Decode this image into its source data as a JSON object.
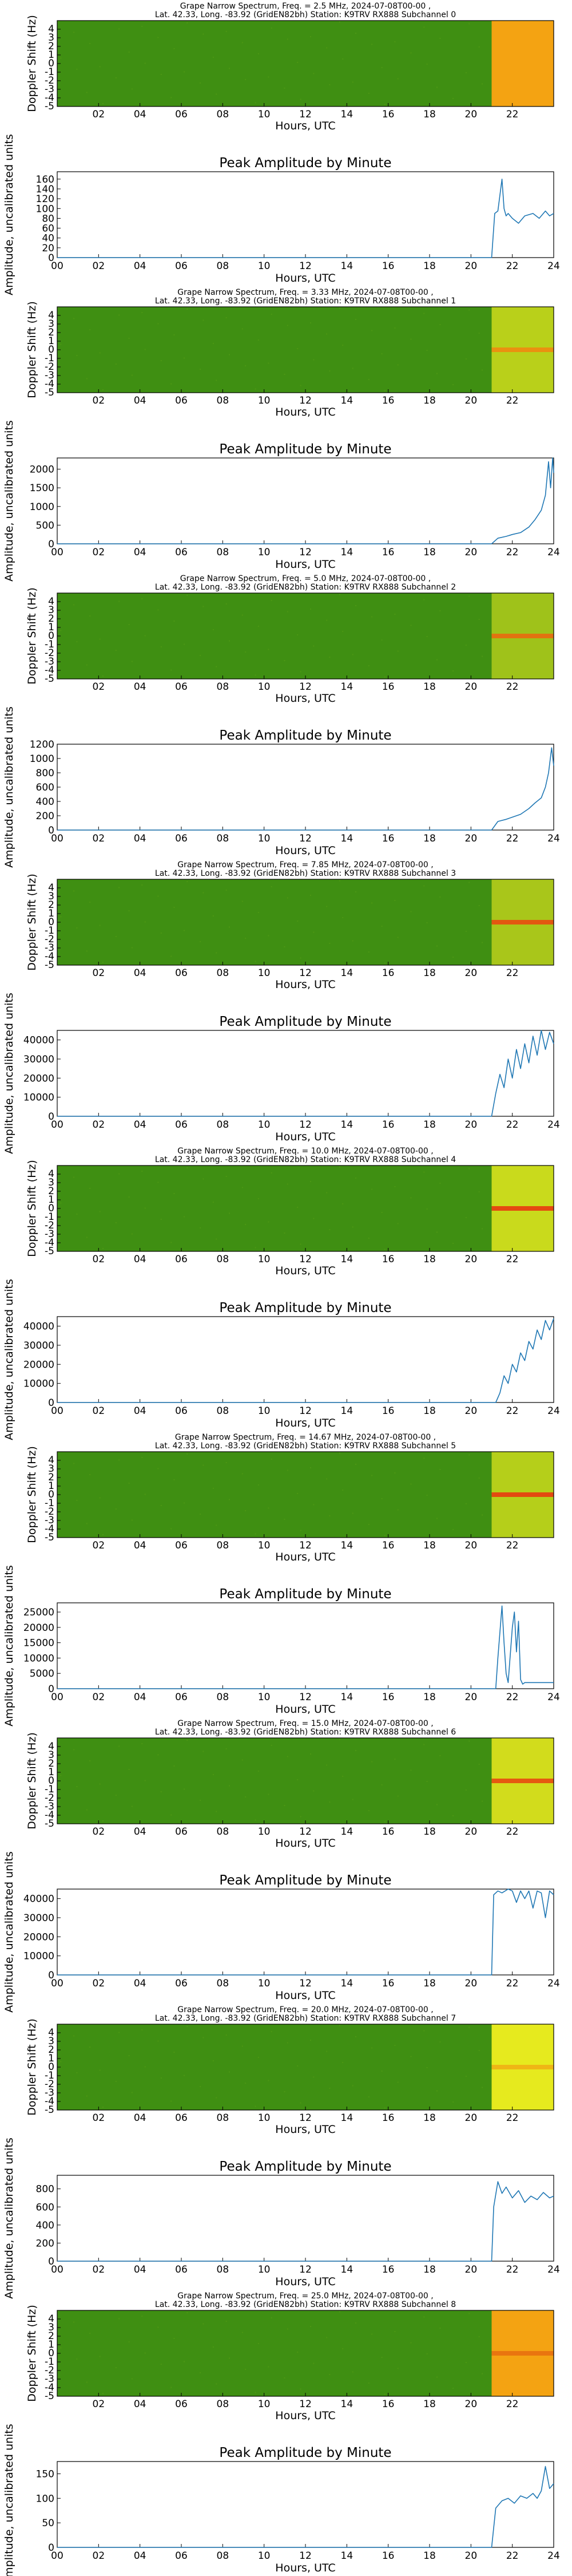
{
  "figure": {
    "type": "grape-narrow-spectrum-panel-stack"
  },
  "chart_data": [
    {
      "subchannel": 0,
      "spectrum": {
        "type": "heatmap",
        "title_line1": "Grape Narrow Spectrum, Freq. = 2.5 MHz, 2024-07-08T00-00 ,",
        "title_line2": "Lat.  42.33, Long. -83.92 (GridEN82bh) Station: K9TRV RX888 Subchannel 0",
        "xlabel": "Hours, UTC",
        "ylabel": "Doppler Shift (Hz)",
        "x_ticks": [
          "02",
          "04",
          "06",
          "08",
          "10",
          "12",
          "14",
          "16",
          "18",
          "20",
          "22"
        ],
        "y_ticks": [
          "-5",
          "-4",
          "-3",
          "-2",
          "-1",
          "0",
          "1",
          "2",
          "3",
          "4"
        ],
        "xlim": [
          0,
          24
        ],
        "ylim": [
          -5,
          5
        ],
        "data_start_hour": 21.0,
        "background_color": "#3f8f12",
        "active_color": "#f4a312",
        "trace_color": null
      },
      "amplitude": {
        "type": "line",
        "title": "Peak Amplitude by Minute",
        "xlabel": "Hours, UTC",
        "ylabel": "Amplitude, uncalibrated units",
        "x_ticks": [
          "00",
          "02",
          "04",
          "06",
          "08",
          "10",
          "12",
          "14",
          "16",
          "18",
          "20",
          "22",
          "24"
        ],
        "y_ticks": [
          "0",
          "20",
          "40",
          "60",
          "80",
          "100",
          "120",
          "140",
          "160"
        ],
        "xlim": [
          0,
          24
        ],
        "ylim": [
          0,
          175
        ],
        "x": [
          0,
          21.0,
          21.15,
          21.3,
          21.5,
          21.6,
          21.7,
          21.8,
          22.0,
          22.3,
          22.6,
          23.0,
          23.3,
          23.6,
          23.8,
          24.0
        ],
        "y": [
          0,
          0,
          90,
          95,
          160,
          100,
          85,
          90,
          80,
          70,
          85,
          90,
          80,
          95,
          85,
          90
        ]
      }
    },
    {
      "subchannel": 1,
      "spectrum": {
        "type": "heatmap",
        "title_line1": "Grape Narrow Spectrum, Freq. = 3.33 MHz, 2024-07-08T00-00 ,",
        "title_line2": "Lat.  42.33, Long. -83.92 (GridEN82bh) Station: K9TRV RX888 Subchannel 1",
        "xlabel": "Hours, UTC",
        "ylabel": "Doppler Shift (Hz)",
        "x_ticks": [
          "02",
          "04",
          "06",
          "08",
          "10",
          "12",
          "14",
          "16",
          "18",
          "20",
          "22"
        ],
        "y_ticks": [
          "-5",
          "-4",
          "-3",
          "-2",
          "-1",
          "0",
          "1",
          "2",
          "3",
          "4"
        ],
        "xlim": [
          0,
          24
        ],
        "ylim": [
          -5,
          5
        ],
        "data_start_hour": 21.0,
        "background_color": "#3f8f12",
        "active_color": "#b9d01a",
        "trace_color": "#f08a10"
      },
      "amplitude": {
        "type": "line",
        "title": "Peak Amplitude by Minute",
        "xlabel": "Hours, UTC",
        "ylabel": "Amplitude, uncalibrated units",
        "x_ticks": [
          "00",
          "02",
          "04",
          "06",
          "08",
          "10",
          "12",
          "14",
          "16",
          "18",
          "20",
          "22",
          "24"
        ],
        "y_ticks": [
          "0",
          "500",
          "1000",
          "1500",
          "2000"
        ],
        "xlim": [
          0,
          24
        ],
        "ylim": [
          0,
          2300
        ],
        "x": [
          0,
          21.0,
          21.3,
          21.7,
          22.0,
          22.4,
          22.8,
          23.1,
          23.4,
          23.6,
          23.75,
          23.85,
          23.95,
          24.0
        ],
        "y": [
          0,
          0,
          150,
          200,
          250,
          300,
          450,
          650,
          900,
          1300,
          2200,
          1500,
          2300,
          1900
        ]
      }
    },
    {
      "subchannel": 2,
      "spectrum": {
        "type": "heatmap",
        "title_line1": "Grape Narrow Spectrum, Freq. = 5.0 MHz, 2024-07-08T00-00 ,",
        "title_line2": "Lat.  42.33, Long. -83.92 (GridEN82bh) Station: K9TRV RX888 Subchannel 2",
        "xlabel": "Hours, UTC",
        "ylabel": "Doppler Shift (Hz)",
        "x_ticks": [
          "02",
          "04",
          "06",
          "08",
          "10",
          "12",
          "14",
          "16",
          "18",
          "20",
          "22"
        ],
        "y_ticks": [
          "-5",
          "-4",
          "-3",
          "-2",
          "-1",
          "0",
          "1",
          "2",
          "3",
          "4"
        ],
        "xlim": [
          0,
          24
        ],
        "ylim": [
          -5,
          5
        ],
        "data_start_hour": 21.0,
        "background_color": "#3f8f12",
        "active_color": "#9fc21a",
        "trace_color": "#e86a10"
      },
      "amplitude": {
        "type": "line",
        "title": "Peak Amplitude by Minute",
        "xlabel": "Hours, UTC",
        "ylabel": "Amplitude, uncalibrated units",
        "x_ticks": [
          "00",
          "02",
          "04",
          "06",
          "08",
          "10",
          "12",
          "14",
          "16",
          "18",
          "20",
          "22",
          "24"
        ],
        "y_ticks": [
          "0",
          "200",
          "400",
          "600",
          "800",
          "1000",
          "1200"
        ],
        "xlim": [
          0,
          24
        ],
        "ylim": [
          0,
          1200
        ],
        "x": [
          0,
          21.0,
          21.3,
          21.7,
          22.0,
          22.4,
          22.8,
          23.1,
          23.4,
          23.6,
          23.75,
          23.9,
          24.0
        ],
        "y": [
          0,
          0,
          120,
          150,
          180,
          220,
          300,
          380,
          450,
          600,
          800,
          1150,
          900
        ]
      }
    },
    {
      "subchannel": 3,
      "spectrum": {
        "type": "heatmap",
        "title_line1": "Grape Narrow Spectrum, Freq. = 7.85 MHz, 2024-07-08T00-00 ,",
        "title_line2": "Lat.  42.33, Long. -83.92 (GridEN82bh) Station: K9TRV RX888 Subchannel 3",
        "xlabel": "Hours, UTC",
        "ylabel": "Doppler Shift (Hz)",
        "x_ticks": [
          "02",
          "04",
          "06",
          "08",
          "10",
          "12",
          "14",
          "16",
          "18",
          "20",
          "22"
        ],
        "y_ticks": [
          "-5",
          "-4",
          "-3",
          "-2",
          "-1",
          "0",
          "1",
          "2",
          "3",
          "4"
        ],
        "xlim": [
          0,
          24
        ],
        "ylim": [
          -5,
          5
        ],
        "data_start_hour": 21.0,
        "background_color": "#3f8f12",
        "active_color": "#a9c61a",
        "trace_color": "#e84a10"
      },
      "amplitude": {
        "type": "line",
        "title": "Peak Amplitude by Minute",
        "xlabel": "Hours, UTC",
        "ylabel": "Amplitude, uncalibrated units",
        "x_ticks": [
          "00",
          "02",
          "04",
          "06",
          "08",
          "10",
          "12",
          "14",
          "16",
          "18",
          "20",
          "22",
          "24"
        ],
        "y_ticks": [
          "0",
          "10000",
          "20000",
          "30000",
          "40000"
        ],
        "xlim": [
          0,
          24
        ],
        "ylim": [
          0,
          45000
        ],
        "x": [
          0,
          21.0,
          21.2,
          21.4,
          21.6,
          21.8,
          22.0,
          22.2,
          22.4,
          22.6,
          22.8,
          23.0,
          23.2,
          23.4,
          23.6,
          23.8,
          24.0
        ],
        "y": [
          0,
          0,
          12000,
          22000,
          15000,
          30000,
          20000,
          35000,
          25000,
          38000,
          28000,
          42000,
          32000,
          45000,
          35000,
          44000,
          38000
        ]
      }
    },
    {
      "subchannel": 4,
      "spectrum": {
        "type": "heatmap",
        "title_line1": "Grape Narrow Spectrum, Freq. = 10.0 MHz, 2024-07-08T00-00 ,",
        "title_line2": "Lat.  42.33, Long. -83.92 (GridEN82bh) Station: K9TRV RX888 Subchannel 4",
        "xlabel": "Hours, UTC",
        "ylabel": "Doppler Shift (Hz)",
        "x_ticks": [
          "02",
          "04",
          "06",
          "08",
          "10",
          "12",
          "14",
          "16",
          "18",
          "20",
          "22"
        ],
        "y_ticks": [
          "-5",
          "-4",
          "-3",
          "-2",
          "-1",
          "0",
          "1",
          "2",
          "3",
          "4"
        ],
        "xlim": [
          0,
          24
        ],
        "ylim": [
          -5,
          5
        ],
        "data_start_hour": 21.0,
        "background_color": "#3f8f12",
        "active_color": "#c9da1c",
        "trace_color": "#e83a10"
      },
      "amplitude": {
        "type": "line",
        "title": "Peak Amplitude by Minute",
        "xlabel": "Hours, UTC",
        "ylabel": "Amplitude, uncalibrated units",
        "x_ticks": [
          "00",
          "02",
          "04",
          "06",
          "08",
          "10",
          "12",
          "14",
          "16",
          "18",
          "20",
          "22",
          "24"
        ],
        "y_ticks": [
          "0",
          "10000",
          "20000",
          "30000",
          "40000"
        ],
        "xlim": [
          0,
          24
        ],
        "ylim": [
          0,
          45000
        ],
        "x": [
          0,
          21.2,
          21.4,
          21.6,
          21.8,
          22.0,
          22.2,
          22.4,
          22.6,
          22.8,
          23.0,
          23.2,
          23.4,
          23.6,
          23.8,
          24.0
        ],
        "y": [
          0,
          0,
          5000,
          14000,
          10000,
          20000,
          16000,
          26000,
          22000,
          32000,
          28000,
          38000,
          33000,
          43000,
          38000,
          44000
        ]
      }
    },
    {
      "subchannel": 5,
      "spectrum": {
        "type": "heatmap",
        "title_line1": "Grape Narrow Spectrum, Freq. = 14.67 MHz, 2024-07-08T00-00 ,",
        "title_line2": "Lat.  42.33, Long. -83.92 (GridEN82bh) Station: K9TRV RX888 Subchannel 5",
        "xlabel": "Hours, UTC",
        "ylabel": "Doppler Shift (Hz)",
        "x_ticks": [
          "02",
          "04",
          "06",
          "08",
          "10",
          "12",
          "14",
          "16",
          "18",
          "20",
          "22"
        ],
        "y_ticks": [
          "-5",
          "-4",
          "-3",
          "-2",
          "-1",
          "0",
          "1",
          "2",
          "3",
          "4"
        ],
        "xlim": [
          0,
          24
        ],
        "ylim": [
          -5,
          5
        ],
        "data_start_hour": 21.0,
        "background_color": "#3f8f12",
        "active_color": "#b5cf1a",
        "trace_color": "#e83a10"
      },
      "amplitude": {
        "type": "line",
        "title": "Peak Amplitude by Minute",
        "xlabel": "Hours, UTC",
        "ylabel": "Amplitude, uncalibrated units",
        "x_ticks": [
          "00",
          "02",
          "04",
          "06",
          "08",
          "10",
          "12",
          "14",
          "16",
          "18",
          "20",
          "22",
          "24"
        ],
        "y_ticks": [
          "0",
          "5000",
          "10000",
          "15000",
          "20000",
          "25000"
        ],
        "xlim": [
          0,
          24
        ],
        "ylim": [
          0,
          28000
        ],
        "x": [
          0,
          21.2,
          21.3,
          21.5,
          21.6,
          21.7,
          21.8,
          22.0,
          22.1,
          22.2,
          22.3,
          22.4,
          22.5,
          22.6,
          24.0
        ],
        "y": [
          0,
          0,
          10000,
          27000,
          15000,
          5000,
          2000,
          20000,
          25000,
          12000,
          22000,
          3000,
          1500,
          2000,
          2000
        ]
      }
    },
    {
      "subchannel": 6,
      "spectrum": {
        "type": "heatmap",
        "title_line1": "Grape Narrow Spectrum, Freq. = 15.0 MHz, 2024-07-08T00-00 ,",
        "title_line2": "Lat.  42.33, Long. -83.92 (GridEN82bh) Station: K9TRV RX888 Subchannel 6",
        "xlabel": "Hours, UTC",
        "ylabel": "Doppler Shift (Hz)",
        "x_ticks": [
          "02",
          "04",
          "06",
          "08",
          "10",
          "12",
          "14",
          "16",
          "18",
          "20",
          "22"
        ],
        "y_ticks": [
          "-5",
          "-4",
          "-3",
          "-2",
          "-1",
          "0",
          "1",
          "2",
          "3",
          "4"
        ],
        "xlim": [
          0,
          24
        ],
        "ylim": [
          -5,
          5
        ],
        "data_start_hour": 21.0,
        "background_color": "#3f8f12",
        "active_color": "#d2dc1c",
        "trace_color": "#e84a10"
      },
      "amplitude": {
        "type": "line",
        "title": "Peak Amplitude by Minute",
        "xlabel": "Hours, UTC",
        "ylabel": "Amplitude, uncalibrated units",
        "x_ticks": [
          "00",
          "02",
          "04",
          "06",
          "08",
          "10",
          "12",
          "14",
          "16",
          "18",
          "20",
          "22",
          "24"
        ],
        "y_ticks": [
          "0",
          "10000",
          "20000",
          "30000",
          "40000"
        ],
        "xlim": [
          0,
          24
        ],
        "ylim": [
          0,
          45000
        ],
        "x": [
          0,
          21.0,
          21.1,
          21.3,
          21.5,
          21.8,
          22.0,
          22.2,
          22.4,
          22.6,
          22.8,
          23.0,
          23.2,
          23.4,
          23.6,
          23.8,
          24.0
        ],
        "y": [
          0,
          0,
          42000,
          44000,
          43000,
          45000,
          44000,
          38000,
          44000,
          40000,
          44000,
          35000,
          44000,
          43000,
          30000,
          44000,
          42000
        ]
      }
    },
    {
      "subchannel": 7,
      "spectrum": {
        "type": "heatmap",
        "title_line1": "Grape Narrow Spectrum, Freq. = 20.0 MHz, 2024-07-08T00-00 ,",
        "title_line2": "Lat.  42.33, Long. -83.92 (GridEN82bh) Station: K9TRV RX888 Subchannel 7",
        "xlabel": "Hours, UTC",
        "ylabel": "Doppler Shift (Hz)",
        "x_ticks": [
          "02",
          "04",
          "06",
          "08",
          "10",
          "12",
          "14",
          "16",
          "18",
          "20",
          "22"
        ],
        "y_ticks": [
          "-5",
          "-4",
          "-3",
          "-2",
          "-1",
          "0",
          "1",
          "2",
          "3",
          "4"
        ],
        "xlim": [
          0,
          24
        ],
        "ylim": [
          -5,
          5
        ],
        "data_start_hour": 21.0,
        "background_color": "#3f8f12",
        "active_color": "#e6ea1e",
        "trace_color": "#f0b014"
      },
      "amplitude": {
        "type": "line",
        "title": "Peak Amplitude by Minute",
        "xlabel": "Hours, UTC",
        "ylabel": "Amplitude, uncalibrated units",
        "x_ticks": [
          "00",
          "02",
          "04",
          "06",
          "08",
          "10",
          "12",
          "14",
          "16",
          "18",
          "20",
          "22",
          "24"
        ],
        "y_ticks": [
          "0",
          "200",
          "400",
          "600",
          "800"
        ],
        "xlim": [
          0,
          24
        ],
        "ylim": [
          0,
          950
        ],
        "x": [
          0,
          21.0,
          21.1,
          21.3,
          21.5,
          21.7,
          22.0,
          22.3,
          22.6,
          22.9,
          23.2,
          23.5,
          23.8,
          24.0
        ],
        "y": [
          0,
          0,
          600,
          880,
          750,
          820,
          700,
          780,
          650,
          720,
          680,
          760,
          700,
          720
        ]
      }
    },
    {
      "subchannel": 8,
      "spectrum": {
        "type": "heatmap",
        "title_line1": "Grape Narrow Spectrum, Freq. = 25.0 MHz, 2024-07-08T00-00 ,",
        "title_line2": "Lat.  42.33, Long. -83.92 (GridEN82bh) Station: K9TRV RX888 Subchannel 8",
        "xlabel": "Hours, UTC",
        "ylabel": "Doppler Shift (Hz)",
        "x_ticks": [
          "02",
          "04",
          "06",
          "08",
          "10",
          "12",
          "14",
          "16",
          "18",
          "20",
          "22"
        ],
        "y_ticks": [
          "-5",
          "-4",
          "-3",
          "-2",
          "-1",
          "0",
          "1",
          "2",
          "3",
          "4"
        ],
        "xlim": [
          0,
          24
        ],
        "ylim": [
          -5,
          5
        ],
        "data_start_hour": 21.0,
        "background_color": "#3f8f12",
        "active_color": "#f4a312",
        "trace_color": "#e87010"
      },
      "amplitude": {
        "type": "line",
        "title": "Peak Amplitude by Minute",
        "xlabel": "Hours, UTC",
        "ylabel": "Amplitude, uncalibrated units",
        "x_ticks": [
          "00",
          "02",
          "04",
          "06",
          "08",
          "10",
          "12",
          "14",
          "16",
          "18",
          "20",
          "22",
          "24"
        ],
        "y_ticks": [
          "0",
          "50",
          "100",
          "150"
        ],
        "xlim": [
          0,
          24
        ],
        "ylim": [
          0,
          175
        ],
        "x": [
          0,
          21.0,
          21.2,
          21.5,
          21.8,
          22.1,
          22.4,
          22.7,
          23.0,
          23.2,
          23.4,
          23.6,
          23.8,
          24.0
        ],
        "y": [
          0,
          0,
          80,
          95,
          100,
          90,
          105,
          100,
          110,
          100,
          115,
          165,
          120,
          130
        ]
      }
    }
  ]
}
